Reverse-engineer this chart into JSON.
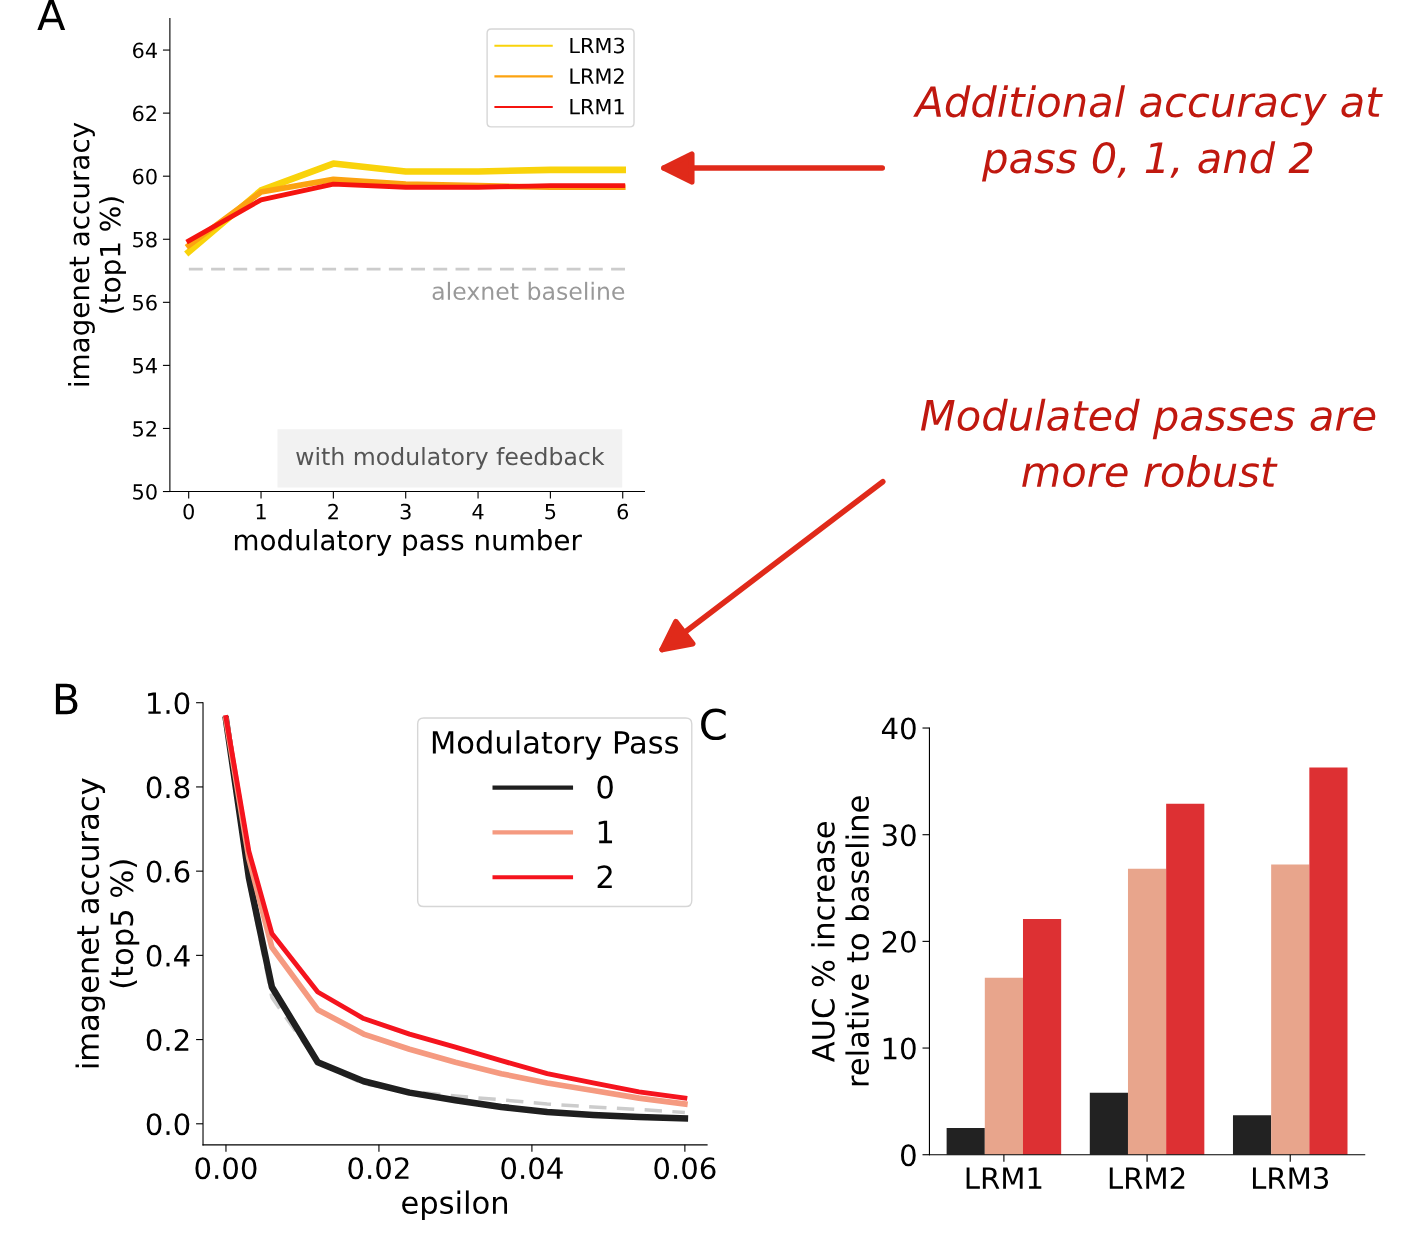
{
  "chart_data": [
    {
      "type": "line",
      "title": "A",
      "xlabel": "modulatory pass number",
      "ylabel": "imagenet accuracy\n(top1 %)",
      "x": [
        0,
        1,
        2,
        3,
        4,
        5,
        6
      ],
      "series": [
        {
          "name": "LRM3",
          "color": "#f9d30b",
          "values": [
            57.6,
            59.55,
            60.4,
            60.15,
            60.15,
            60.2,
            60.2
          ]
        },
        {
          "name": "LRM2",
          "color": "#fca311",
          "values": [
            57.8,
            59.5,
            59.9,
            59.75,
            59.7,
            59.65,
            59.65
          ]
        },
        {
          "name": "LRM1",
          "color": "#f5140f",
          "values": [
            57.95,
            59.25,
            59.75,
            59.65,
            59.65,
            59.7,
            59.7
          ]
        }
      ],
      "xlim": [
        -0.26,
        6.3
      ],
      "ylim": [
        50,
        65
      ],
      "xticks": [
        0,
        1,
        2,
        3,
        4,
        5,
        6
      ],
      "yticks": [
        50,
        52,
        54,
        56,
        58,
        60,
        62,
        64
      ],
      "ref_lines": [
        {
          "axis": "y",
          "value": 57.05,
          "label": "alexnet baseline",
          "color": "#cccccc",
          "line_style": "dashed"
        }
      ],
      "annotations": [
        "with modulatory feedback",
        "Additional accuracy at\npass 0, 1, and 2"
      ],
      "legend": "top right",
      "grid": false
    },
    {
      "type": "line",
      "title": "B",
      "xlabel": "epsilon",
      "ylabel": "imagenet accuracy\n(top5 %)",
      "legend_title": "Modulatory Pass",
      "x": [
        0,
        0.003,
        0.006,
        0.012,
        0.018,
        0.024,
        0.03,
        0.036,
        0.042,
        0.048,
        0.054,
        0.06
      ],
      "series": [
        {
          "color": "#cccccc",
          "line_style": "dashed",
          "values": [
            0.96,
            0.57,
            0.3,
            0.145,
            0.095,
            0.077,
            0.066,
            0.057,
            0.047,
            0.04,
            0.034,
            0.027
          ]
        },
        {
          "name": "0",
          "color": "#1f1f1f",
          "values": [
            0.96,
            0.584,
            0.325,
            0.146,
            0.101,
            0.074,
            0.056,
            0.04,
            0.028,
            0.021,
            0.016,
            0.013
          ]
        },
        {
          "name": "1",
          "color": "#f59a80",
          "values": [
            0.96,
            0.63,
            0.419,
            0.271,
            0.213,
            0.177,
            0.146,
            0.119,
            0.097,
            0.079,
            0.061,
            0.047
          ]
        },
        {
          "name": "2",
          "color": "#f5141e",
          "values": [
            0.965,
            0.647,
            0.452,
            0.313,
            0.25,
            0.213,
            0.182,
            0.15,
            0.119,
            0.097,
            0.076,
            0.061
          ]
        }
      ],
      "xlim": [
        -0.003,
        0.0629
      ],
      "ylim": [
        -0.05,
        1.0
      ],
      "xticks": [
        {
          "value": 0,
          "label": "0.00"
        },
        {
          "value": 0.02,
          "label": "0.02"
        },
        {
          "value": 0.04,
          "label": "0.04"
        },
        {
          "value": 0.06,
          "label": "0.06"
        }
      ],
      "yticks": [
        {
          "value": 0,
          "label": "0.0"
        },
        {
          "value": 0.2,
          "label": "0.2"
        },
        {
          "value": 0.4,
          "label": "0.4"
        },
        {
          "value": 0.6,
          "label": "0.6"
        },
        {
          "value": 0.8,
          "label": "0.8"
        },
        {
          "value": 1.0,
          "label": "1.0"
        }
      ],
      "annotations": [
        "Modulated passes are\nmore robust"
      ],
      "legend": "top right",
      "grid": false
    },
    {
      "type": "bar",
      "title": "C",
      "ylabel": "AUC % increase\nrelative to baseline",
      "categories": [
        "LRM1",
        "LRM2",
        "LRM3"
      ],
      "series": [
        {
          "color": "#222222",
          "values": [
            2.5,
            5.8,
            3.7
          ]
        },
        {
          "color": "#e8a58c",
          "values": [
            16.6,
            26.8,
            27.2
          ]
        },
        {
          "color": "#dd3033",
          "values": [
            22.1,
            32.9,
            36.3
          ]
        }
      ],
      "ylim": [
        0,
        40
      ],
      "yticks": [
        0,
        10,
        20,
        30,
        40
      ],
      "grid": false
    }
  ]
}
